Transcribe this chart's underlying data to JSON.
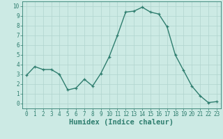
{
  "x": [
    0,
    1,
    2,
    3,
    4,
    5,
    6,
    7,
    8,
    9,
    10,
    11,
    12,
    13,
    14,
    15,
    16,
    17,
    18,
    19,
    20,
    21,
    22,
    23
  ],
  "y": [
    2.9,
    3.8,
    3.5,
    3.5,
    3.0,
    1.4,
    1.6,
    2.5,
    1.8,
    3.1,
    4.8,
    7.0,
    9.4,
    9.5,
    9.9,
    9.4,
    9.2,
    7.9,
    5.0,
    3.4,
    1.8,
    0.8,
    0.1,
    0.2
  ],
  "line_color": "#2e7d6e",
  "marker": "+",
  "marker_size": 3,
  "line_width": 1.0,
  "bg_color": "#cceae4",
  "grid_color": "#b0d4ce",
  "xlabel": "Humidex (Indice chaleur)",
  "xlim": [
    -0.5,
    23.5
  ],
  "ylim": [
    -0.5,
    10.5
  ],
  "xticks": [
    0,
    1,
    2,
    3,
    4,
    5,
    6,
    7,
    8,
    9,
    10,
    11,
    12,
    13,
    14,
    15,
    16,
    17,
    18,
    19,
    20,
    21,
    22,
    23
  ],
  "yticks": [
    0,
    1,
    2,
    3,
    4,
    5,
    6,
    7,
    8,
    9,
    10
  ],
  "tick_fontsize": 5.5,
  "xlabel_fontsize": 7.5,
  "tick_color": "#2e7d6e",
  "axis_color": "#2e7d6e",
  "label_color": "#2e7d6e"
}
